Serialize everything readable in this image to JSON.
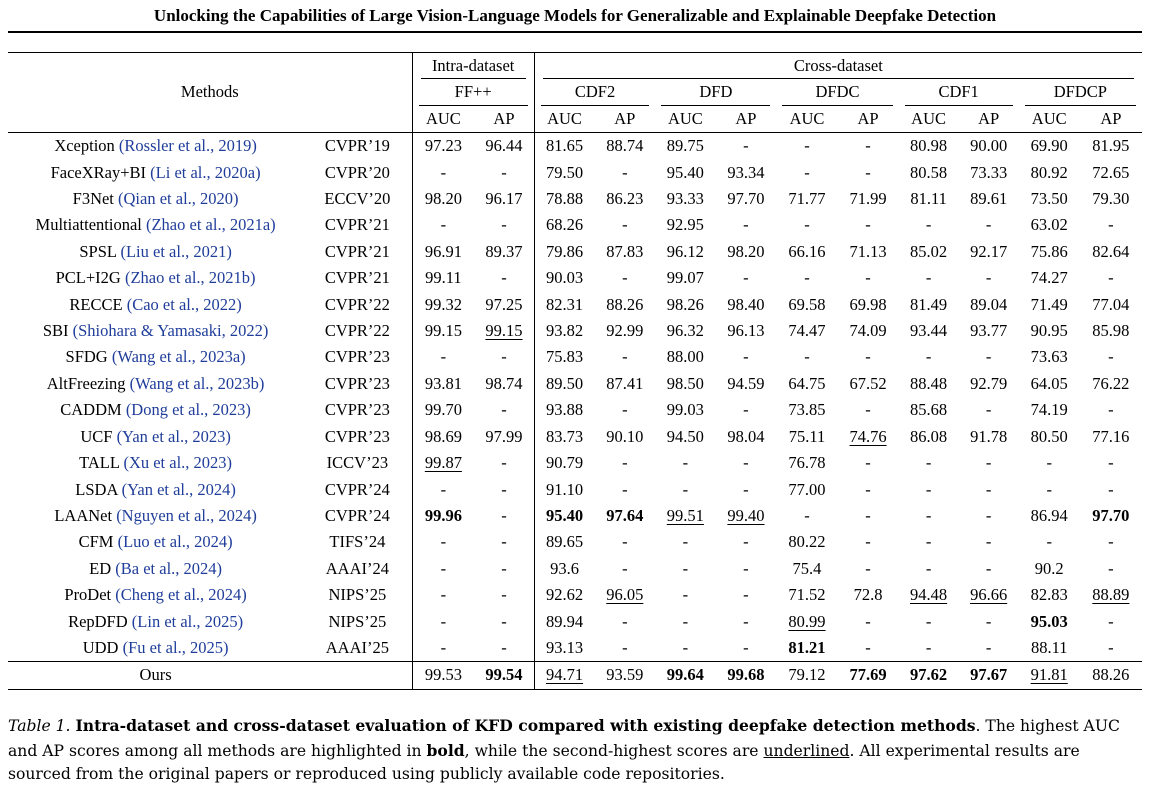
{
  "title": "Unlocking the Capabilities of Large Vision-Language Models for Generalizable and Explainable Deepfake Detection",
  "header": {
    "methods": "Methods",
    "intra_group": "Intra-dataset",
    "cross_group": "Cross-dataset",
    "datasets": [
      "FF++",
      "CDF2",
      "DFD",
      "DFDC",
      "CDF1",
      "DFDCP"
    ],
    "metrics": [
      "AUC",
      "AP",
      "AUC",
      "AP",
      "AUC",
      "AP",
      "AUC",
      "AP",
      "AUC",
      "AP",
      "AUC",
      "AP"
    ]
  },
  "rows": [
    {
      "name": "Xception",
      "cite": "(Rossler et al., 2019)",
      "venue": "CVPR’19",
      "values": [
        "97.23",
        "96.44",
        "81.65",
        "88.74",
        "89.75",
        "-",
        "-",
        "-",
        "80.98",
        "90.00",
        "69.90",
        "81.95"
      ]
    },
    {
      "name": "FaceXRay+BI",
      "cite": "(Li et al., 2020a)",
      "venue": "CVPR’20",
      "values": [
        "-",
        "-",
        "79.50",
        "-",
        "95.40",
        "93.34",
        "-",
        "-",
        "80.58",
        "73.33",
        "80.92",
        "72.65"
      ]
    },
    {
      "name": "F3Net",
      "cite": "(Qian et al., 2020)",
      "venue": "ECCV’20",
      "values": [
        "98.20",
        "96.17",
        "78.88",
        "86.23",
        "93.33",
        "97.70",
        "71.77",
        "71.99",
        "81.11",
        "89.61",
        "73.50",
        "79.30"
      ]
    },
    {
      "name": "Multiattentional",
      "cite": "(Zhao et al., 2021a)",
      "venue": "CVPR’21",
      "values": [
        "-",
        "-",
        "68.26",
        "-",
        "92.95",
        "-",
        "-",
        "-",
        "-",
        "-",
        "63.02",
        "-"
      ]
    },
    {
      "name": "SPSL",
      "cite": "(Liu et al., 2021)",
      "venue": "CVPR’21",
      "values": [
        "96.91",
        "89.37",
        "79.86",
        "87.83",
        "96.12",
        "98.20",
        "66.16",
        "71.13",
        "85.02",
        "92.17",
        "75.86",
        "82.64"
      ]
    },
    {
      "name": "PCL+I2G",
      "cite": "(Zhao et al., 2021b)",
      "venue": "CVPR’21",
      "values": [
        "99.11",
        "-",
        "90.03",
        "-",
        "99.07",
        "-",
        "-",
        "-",
        "-",
        "-",
        "74.27",
        "-"
      ]
    },
    {
      "name": "RECCE",
      "cite": "(Cao et al., 2022)",
      "venue": "CVPR’22",
      "values": [
        "99.32",
        "97.25",
        "82.31",
        "88.26",
        "98.26",
        "98.40",
        "69.58",
        "69.98",
        "81.49",
        "89.04",
        "71.49",
        "77.04"
      ]
    },
    {
      "name": "SBI",
      "cite": "(Shiohara & Yamasaki, 2022)",
      "venue": "CVPR’22",
      "values": [
        "99.15",
        "99.15",
        "93.82",
        "92.99",
        "96.32",
        "96.13",
        "74.47",
        "74.09",
        "93.44",
        "93.77",
        "90.95",
        "85.98"
      ],
      "underline": [
        1
      ]
    },
    {
      "name": "SFDG",
      "cite": "(Wang et al., 2023a)",
      "venue": "CVPR’23",
      "values": [
        "-",
        "-",
        "75.83",
        "-",
        "88.00",
        "-",
        "-",
        "-",
        "-",
        "-",
        "73.63",
        "-"
      ]
    },
    {
      "name": "AltFreezing",
      "cite": "(Wang et al., 2023b)",
      "venue": "CVPR’23",
      "values": [
        "93.81",
        "98.74",
        "89.50",
        "87.41",
        "98.50",
        "94.59",
        "64.75",
        "67.52",
        "88.48",
        "92.79",
        "64.05",
        "76.22"
      ]
    },
    {
      "name": "CADDM",
      "cite": "(Dong et al., 2023)",
      "venue": "CVPR’23",
      "values": [
        "99.70",
        "-",
        "93.88",
        "-",
        "99.03",
        "-",
        "73.85",
        "-",
        "85.68",
        "-",
        "74.19",
        "-"
      ]
    },
    {
      "name": "UCF",
      "cite": "(Yan et al., 2023)",
      "venue": "CVPR’23",
      "values": [
        "98.69",
        "97.99",
        "83.73",
        "90.10",
        "94.50",
        "98.04",
        "75.11",
        "74.76",
        "86.08",
        "91.78",
        "80.50",
        "77.16"
      ],
      "underline": [
        7
      ]
    },
    {
      "name": "TALL",
      "cite": "(Xu et al., 2023)",
      "venue": "ICCV’23",
      "values": [
        "99.87",
        "-",
        "90.79",
        "-",
        "-",
        "-",
        "76.78",
        "-",
        "-",
        "-",
        "-",
        "-"
      ],
      "underline": [
        0
      ]
    },
    {
      "name": "LSDA",
      "cite": "(Yan et al., 2024)",
      "venue": "CVPR’24",
      "values": [
        "-",
        "-",
        "91.10",
        "-",
        "-",
        "-",
        "77.00",
        "-",
        "-",
        "-",
        "-",
        "-"
      ]
    },
    {
      "name": "LAANet",
      "cite": "(Nguyen et al., 2024)",
      "venue": "CVPR’24",
      "values": [
        "99.96",
        "-",
        "95.40",
        "97.64",
        "99.51",
        "99.40",
        "-",
        "-",
        "-",
        "-",
        "86.94",
        "97.70"
      ],
      "bold": [
        0,
        2,
        3,
        11
      ],
      "underline": [
        4,
        5
      ]
    },
    {
      "name": "CFM",
      "cite": "(Luo et al., 2024)",
      "venue": "TIFS’24",
      "values": [
        "-",
        "-",
        "89.65",
        "-",
        "-",
        "-",
        "80.22",
        "-",
        "-",
        "-",
        "-",
        "-"
      ]
    },
    {
      "name": "ED",
      "cite": "(Ba et al., 2024)",
      "venue": "AAAI’24",
      "values": [
        "-",
        "-",
        "93.6",
        "-",
        "-",
        "-",
        "75.4",
        "-",
        "-",
        "-",
        "90.2",
        "-"
      ]
    },
    {
      "name": "ProDet",
      "cite": "(Cheng et al., 2024)",
      "venue": "NIPS’25",
      "values": [
        "-",
        "-",
        "92.62",
        "96.05",
        "-",
        "-",
        "71.52",
        "72.8",
        "94.48",
        "96.66",
        "82.83",
        "88.89"
      ],
      "underline": [
        3,
        8,
        9,
        11
      ]
    },
    {
      "name": "RepDFD",
      "cite": "(Lin et al., 2025)",
      "venue": "NIPS’25",
      "values": [
        "-",
        "-",
        "89.94",
        "-",
        "-",
        "-",
        "80.99",
        "-",
        "-",
        "-",
        "95.03",
        "-"
      ],
      "bold": [
        10
      ],
      "underline": [
        6
      ]
    },
    {
      "name": "UDD",
      "cite": "(Fu et al., 2025)",
      "venue": "AAAI’25",
      "values": [
        "-",
        "-",
        "93.13",
        "-",
        "-",
        "-",
        "81.21",
        "-",
        "-",
        "-",
        "88.11",
        "-"
      ],
      "bold": [
        6
      ]
    }
  ],
  "ours": {
    "name": "Ours",
    "venue": "",
    "values": [
      "99.53",
      "99.54",
      "94.71",
      "93.59",
      "99.64",
      "99.68",
      "79.12",
      "77.69",
      "97.62",
      "97.67",
      "91.81",
      "88.26"
    ],
    "bold": [
      1,
      4,
      5,
      7,
      8,
      9
    ],
    "underline": [
      2,
      10
    ]
  },
  "caption": {
    "label": "Table 1.",
    "bold_lead": "Intra-dataset and cross-dataset evaluation of KFD compared with existing deepfake detection methods",
    "text1": ". The highest AUC and AP scores among all methods are highlighted in ",
    "bold_word": "bold",
    "text2": ", while the second-highest scores are ",
    "underline_word": "underlined",
    "text3": ". All experimental results are sourced from the original papers or reproduced using publicly available code repositories."
  },
  "colors": {
    "citation": "#1f3d9a",
    "text": "#000000"
  }
}
